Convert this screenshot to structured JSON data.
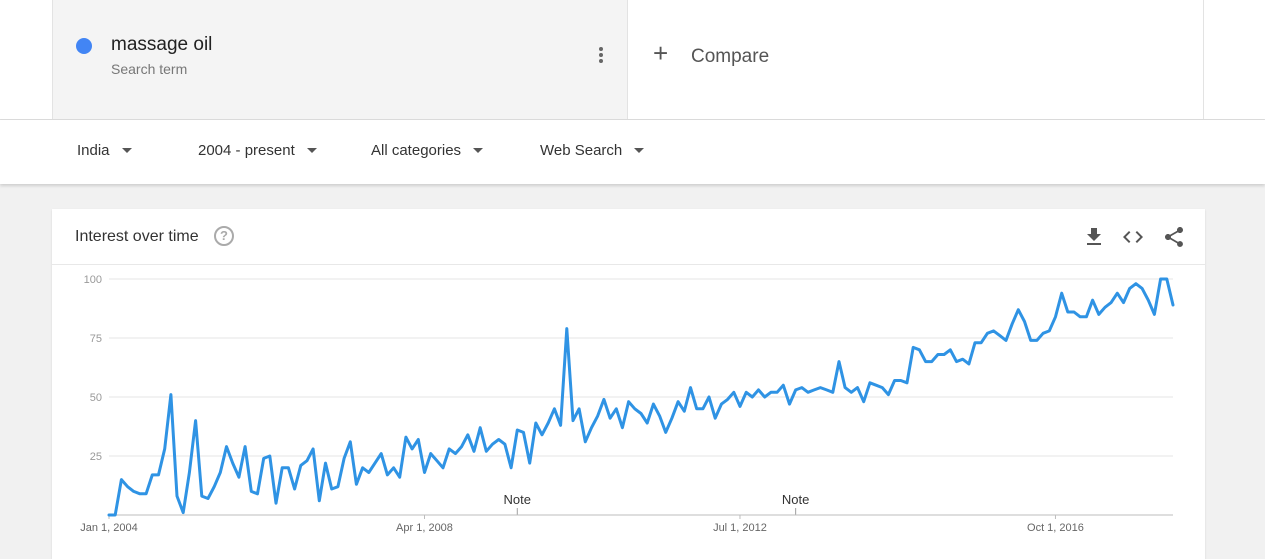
{
  "search_term": {
    "name": "massage oil",
    "subtitle": "Search term",
    "color": "#4285f4"
  },
  "compare": {
    "label": "Compare"
  },
  "filters": {
    "region": "India",
    "time": "2004 - present",
    "category": "All categories",
    "search_type": "Web Search"
  },
  "card": {
    "title": "Interest over time",
    "help_glyph": "?"
  },
  "chart_data": {
    "type": "line",
    "title": "",
    "xlabel": "",
    "ylabel": "",
    "y_ticks": [
      25,
      50,
      75,
      100
    ],
    "ylim": [
      0,
      100
    ],
    "grid": true,
    "line_color": "#2f93e4",
    "x_start": "Jan 2004",
    "x_step": "1 month",
    "x_tick_labels": [
      "Jan 1, 2004",
      "Apr 1, 2008",
      "Jul 1, 2012",
      "Oct 1, 2016"
    ],
    "x_tick_index": [
      0,
      51,
      102,
      153
    ],
    "notes": [
      {
        "label": "Note",
        "index": 66
      },
      {
        "label": "Note",
        "index": 111
      }
    ],
    "series": [
      {
        "values": [
          0,
          0,
          15,
          12,
          10,
          9,
          9,
          17,
          17,
          28,
          51,
          8,
          1,
          18,
          40,
          8,
          7,
          12,
          18,
          29,
          22,
          16,
          29,
          10,
          9,
          24,
          25,
          5,
          20,
          20,
          11,
          21,
          23,
          28,
          6,
          22,
          11,
          12,
          24,
          31,
          13,
          20,
          18,
          22,
          26,
          17,
          20,
          16,
          33,
          28,
          32,
          18,
          26,
          23,
          20,
          28,
          26,
          29,
          34,
          27,
          37,
          27,
          30,
          32,
          30,
          20,
          36,
          35,
          22,
          39,
          34,
          39,
          45,
          38,
          79,
          40,
          45,
          31,
          37,
          42,
          49,
          41,
          45,
          37,
          48,
          45,
          43,
          39,
          47,
          42,
          35,
          41,
          48,
          44,
          54,
          45,
          45,
          50,
          41,
          47,
          49,
          52,
          46,
          52,
          50,
          53,
          50,
          52,
          52,
          55,
          47,
          53,
          54,
          52,
          53,
          54,
          53,
          52,
          65,
          54,
          52,
          54,
          48,
          56,
          55,
          54,
          51,
          57,
          57,
          56,
          71,
          70,
          65,
          65,
          68,
          68,
          70,
          65,
          66,
          64,
          73,
          73,
          77,
          78,
          76,
          74,
          81,
          87,
          82,
          74,
          74,
          77,
          78,
          84,
          94,
          86,
          86,
          84,
          84,
          91,
          85,
          88,
          90,
          94,
          90,
          96,
          98,
          96,
          91,
          85,
          100,
          100,
          89
        ]
      }
    ]
  }
}
